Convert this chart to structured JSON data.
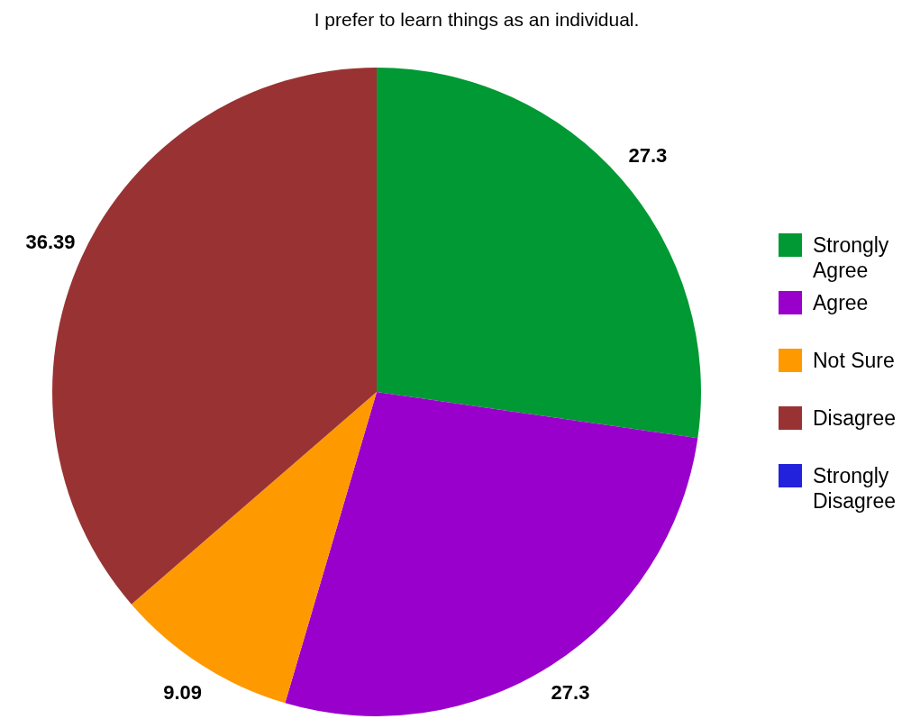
{
  "chart_data": {
    "type": "pie",
    "title": "I prefer to learn things as an individual.",
    "categories": [
      "Strongly Agree",
      "Agree",
      "Not Sure",
      "Disagree",
      "Strongly Disagree"
    ],
    "values": [
      27.3,
      27.3,
      9.09,
      36.39,
      0
    ],
    "colors": [
      "#009933",
      "#9900cc",
      "#ff9900",
      "#993333",
      "#2222dd"
    ],
    "value_labels": [
      "27.3",
      "27.3",
      "9.09",
      "36.39",
      null
    ],
    "legend": "right"
  }
}
